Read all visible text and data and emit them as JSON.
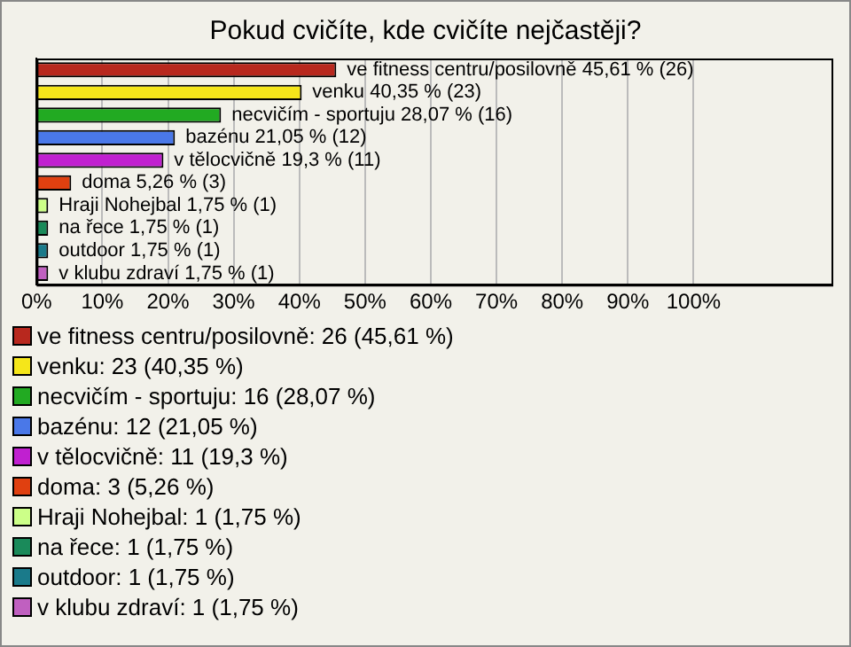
{
  "chart_data": {
    "type": "bar",
    "orientation": "horizontal",
    "title": "Pokud cvičíte, kde cvičíte nejčastěji?",
    "categories": [
      null,
      null,
      null,
      null,
      null,
      null,
      null,
      null,
      null,
      null
    ],
    "values": [
      45.61,
      40.35,
      28.07,
      21.05,
      19.3,
      5.26,
      1.75,
      1.75,
      1.75,
      1.75
    ],
    "colors": [
      "#b8281e",
      "#f5e61a",
      "#22aa22",
      "#4a78e8",
      "#c020d0",
      "#e04010",
      "#ccff88",
      "#1a8a5a",
      "#1a7a8a",
      "#c060c0"
    ],
    "value_labels": [
      "ve fitness centru/posilovně 45,61 % (26)",
      "venku 40,35 % (23)",
      "necvičím - sportuju 28,07 % (16)",
      "bazénu 21,05 % (12)",
      "v tělocvičně 19,3 % (11)",
      "doma 5,26 % (3)",
      "Hraji Nohejbal 1,75 % (1)",
      "na řece 1,75 % (1)",
      "outdoor 1,75 % (1)",
      "v klubu zdraví 1,75 % (1)"
    ],
    "annotations": [
      "ve fitness centru/posilovně: 26 (45,61 %)",
      "venku: 23 (40,35 %)",
      "necvičím - sportuju: 16 (28,07 %)",
      "bazénu: 12 (21,05 %)",
      "v tělocvičně: 11 (19,3 %)",
      "doma: 3 (5,26 %)",
      "Hraji Nohejbal: 1 (1,75 %)",
      "na řece: 1 (1,75 %)",
      "outdoor: 1 (1,75 %)",
      "v klubu zdraví: 1 (1,75 %)"
    ],
    "xlim": [
      0,
      121
    ],
    "xticks": [
      {
        "value": 0,
        "label": "0%"
      },
      {
        "value": 10,
        "label": "10%"
      },
      {
        "value": 20,
        "label": "20%"
      },
      {
        "value": 30,
        "label": "30%"
      },
      {
        "value": 40,
        "label": "40%"
      },
      {
        "value": 50,
        "label": "50%"
      },
      {
        "value": 60,
        "label": "60%"
      },
      {
        "value": 70,
        "label": "70%"
      },
      {
        "value": 80,
        "label": "80%"
      },
      {
        "value": 90,
        "label": "90%"
      },
      {
        "value": 100,
        "label": "100%"
      }
    ],
    "grid": "x",
    "tick_labels": "x"
  }
}
